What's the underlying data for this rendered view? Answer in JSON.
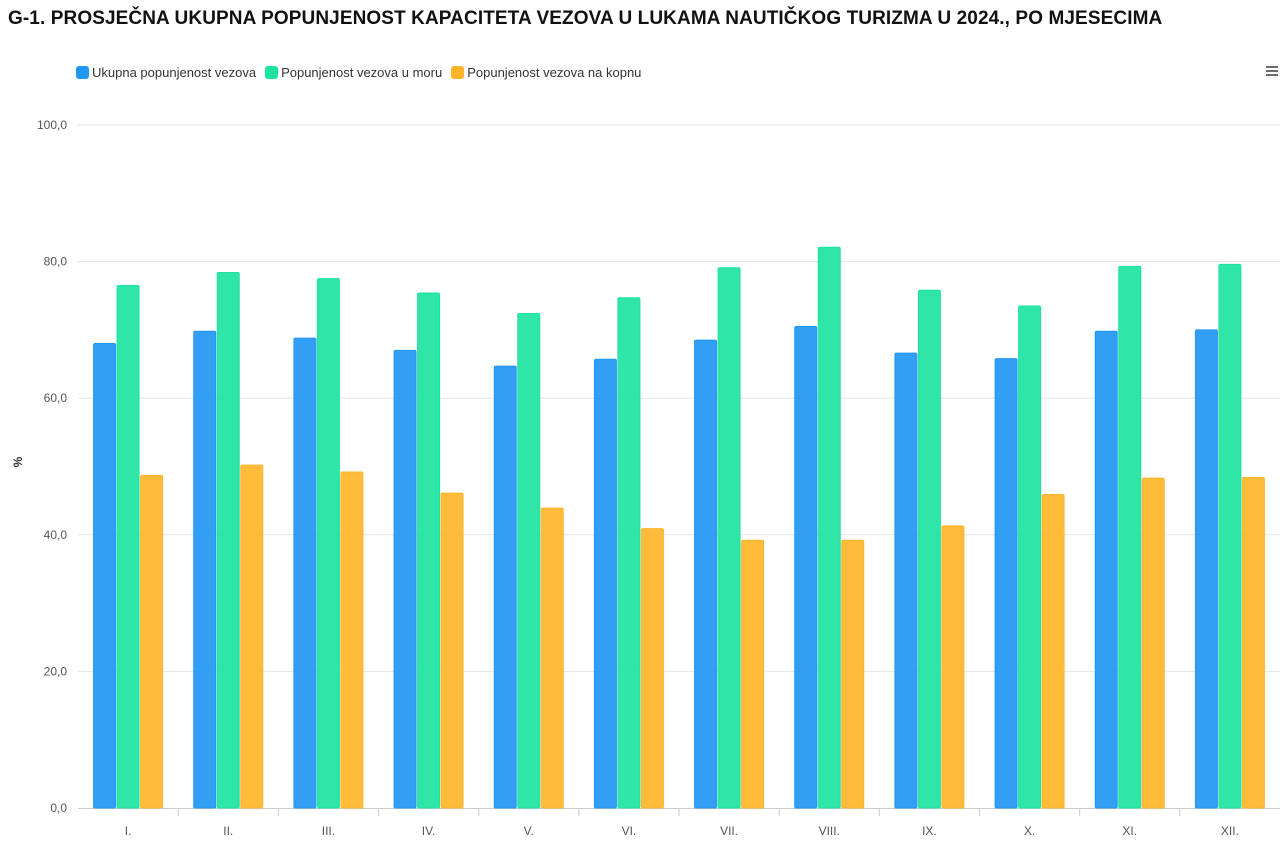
{
  "title": "G-1. PROSJEČNA UKUPNA POPUNJENOST KAPACITETA VEZOVA U LUKAMA NAUTIČKOG TURIZMA U 2024., PO MJESECIMA",
  "menu_icon": "hamburger-menu-icon",
  "colors": {
    "total": "#2196f3",
    "sea": "#1de39f",
    "land": "#ffb529",
    "grid": "#e6e6e6",
    "axis": "#cccccc"
  },
  "legend": [
    {
      "label": "Ukupna popunjenost vezova",
      "color": "#2196f3"
    },
    {
      "label": "Popunjenost vezova u moru",
      "color": "#1de39f"
    },
    {
      "label": "Popunjenost vezova na kopnu",
      "color": "#ffb529"
    }
  ],
  "chart_data": {
    "type": "bar",
    "title": "G-1. PROSJEČNA UKUPNA POPUNJENOST KAPACITETA VEZOVA U LUKAMA NAUTIČKOG TURIZMA U 2024., PO MJESECIMA",
    "xlabel": "",
    "ylabel": "%",
    "ylim": [
      0,
      100
    ],
    "yticks": [
      "0,0",
      "20,0",
      "40,0",
      "60,0",
      "80,0",
      "100,0"
    ],
    "grid": true,
    "legend_position": "top-left",
    "categories": [
      "I.",
      "II.",
      "III.",
      "IV.",
      "V.",
      "VI.",
      "VII.",
      "VIII.",
      "IX.",
      "X.",
      "XI.",
      "XII."
    ],
    "series": [
      {
        "name": "Ukupna popunjenost vezova",
        "color": "#2196f3",
        "values": [
          68.0,
          69.8,
          68.8,
          67.0,
          64.7,
          65.7,
          68.5,
          70.5,
          66.6,
          65.8,
          69.8,
          70.0
        ]
      },
      {
        "name": "Popunjenost vezova u moru",
        "color": "#1de39f",
        "values": [
          76.5,
          78.4,
          77.5,
          75.4,
          72.4,
          74.7,
          79.1,
          82.1,
          75.8,
          73.5,
          79.3,
          79.6
        ]
      },
      {
        "name": "Popunjenost vezova na kopnu",
        "color": "#ffb529",
        "values": [
          48.7,
          50.2,
          49.2,
          46.1,
          43.9,
          40.9,
          39.2,
          39.2,
          41.3,
          45.9,
          48.3,
          48.4
        ]
      }
    ]
  }
}
